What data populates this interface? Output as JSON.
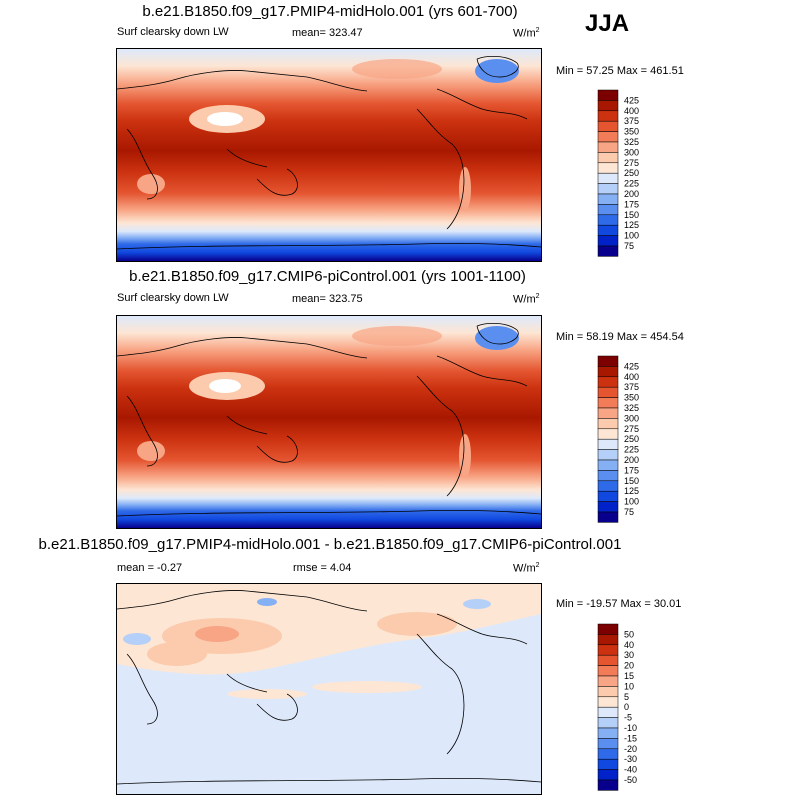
{
  "season": "JJA",
  "panels": [
    {
      "title": "b.e21.B1850.f09_g17.PMIP4-midHolo.001 (yrs 601-700)",
      "left_label": "Surf clearsky down LW",
      "center_label": "mean= 323.47",
      "units": "W/m",
      "units_sup": "2",
      "minmax": "Min =  57.25 Max = 461.51"
    },
    {
      "title": "b.e21.B1850.f09_g17.CMIP6-piControl.001 (yrs 1001-1100)",
      "left_label": "Surf clearsky down LW",
      "center_label": "mean= 323.75",
      "units": "W/m",
      "units_sup": "2",
      "minmax": "Min =  58.19 Max = 454.54"
    },
    {
      "title": "b.e21.B1850.f09_g17.PMIP4-midHolo.001 - b.e21.B1850.f09_g17.CMIP6-piControl.001",
      "left_label": "mean =  -0.27",
      "center_label": "rmse =   4.04",
      "units": "W/m",
      "units_sup": "2",
      "minmax": "Min = -19.57 Max =  30.01"
    }
  ],
  "chart_data": [
    {
      "type": "heatmap",
      "title": "b.e21.B1850.f09_g17.PMIP4-midHolo.001 (yrs 601-700)",
      "variable": "Surf clearsky down LW",
      "units": "W/m2",
      "mean": 323.47,
      "min": 57.25,
      "max": 461.51,
      "levels": [
        75,
        100,
        125,
        150,
        175,
        200,
        225,
        250,
        275,
        300,
        325,
        350,
        375,
        400,
        425
      ],
      "colors": [
        "#08008c",
        "#0022c8",
        "#1048e0",
        "#2f6ae8",
        "#5a8eef",
        "#86b0f4",
        "#b4cff8",
        "#dde9fb",
        "#fde6d4",
        "#fccbad",
        "#f8a585",
        "#f27c58",
        "#e45530",
        "#cc3210",
        "#a81800",
        "#7d0000"
      ]
    },
    {
      "type": "heatmap",
      "title": "b.e21.B1850.f09_g17.CMIP6-piControl.001 (yrs 1001-1100)",
      "variable": "Surf clearsky down LW",
      "units": "W/m2",
      "mean": 323.75,
      "min": 58.19,
      "max": 454.54,
      "levels": [
        75,
        100,
        125,
        150,
        175,
        200,
        225,
        250,
        275,
        300,
        325,
        350,
        375,
        400,
        425
      ],
      "colors": [
        "#08008c",
        "#0022c8",
        "#1048e0",
        "#2f6ae8",
        "#5a8eef",
        "#86b0f4",
        "#b4cff8",
        "#dde9fb",
        "#fde6d4",
        "#fccbad",
        "#f8a585",
        "#f27c58",
        "#e45530",
        "#cc3210",
        "#a81800",
        "#7d0000"
      ]
    },
    {
      "type": "heatmap",
      "title": "b.e21.B1850.f09_g17.PMIP4-midHolo.001 - b.e21.B1850.f09_g17.CMIP6-piControl.001",
      "variable": "",
      "units": "W/m2",
      "mean": -0.27,
      "rmse": 4.04,
      "min": -19.57,
      "max": 30.01,
      "levels": [
        -50,
        -40,
        -30,
        -20,
        -15,
        -10,
        -5,
        0,
        5,
        10,
        15,
        20,
        30,
        40,
        50
      ],
      "colors": [
        "#08008c",
        "#0022c8",
        "#1048e0",
        "#2f6ae8",
        "#5a8eef",
        "#86b0f4",
        "#b4cff8",
        "#dde9fb",
        "#fde6d4",
        "#fccbad",
        "#f8a585",
        "#f27c58",
        "#e45530",
        "#cc3210",
        "#a81800",
        "#7d0000"
      ]
    }
  ]
}
